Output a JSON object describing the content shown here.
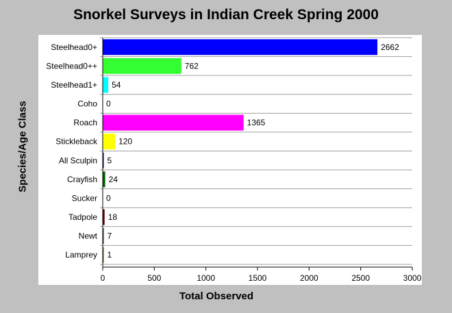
{
  "chart_data": {
    "type": "bar",
    "orientation": "horizontal",
    "title": "Snorkel Surveys in Indian Creek Spring 2000",
    "xlabel": "Total Observed",
    "ylabel": "Species/Age Class",
    "xlim": [
      0,
      3000
    ],
    "xticks": [
      0,
      500,
      1000,
      1500,
      2000,
      2500,
      3000
    ],
    "grid": "horizontal",
    "categories": [
      "Steelhead0+",
      "Steelhead0++",
      "Steelhead1+",
      "Coho",
      "Roach",
      "Stickleback",
      "All Sculpin",
      "Crayfish",
      "Sucker",
      "Tadpole",
      "Newt",
      "Lamprey"
    ],
    "values": [
      2662,
      762,
      54,
      0,
      1365,
      120,
      5,
      24,
      0,
      18,
      7,
      1
    ],
    "colors": [
      "#0000ff",
      "#33ff33",
      "#00ffff",
      "#888888",
      "#ff00ff",
      "#ffff00",
      "#000066",
      "#006600",
      "#666666",
      "#660000",
      "#333333",
      "#666600"
    ]
  }
}
